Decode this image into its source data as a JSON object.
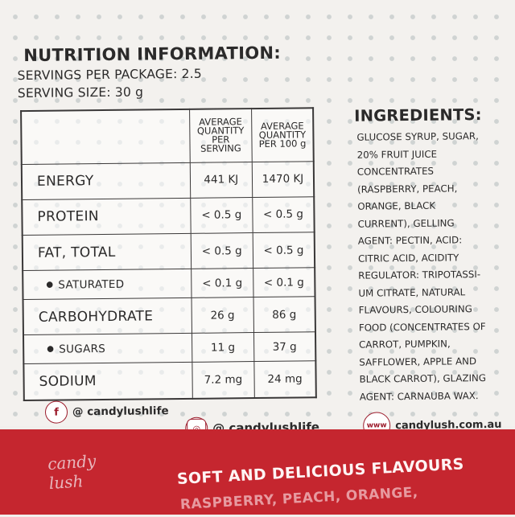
{
  "nutrition": {
    "title": "NUTRITION INFORMATION:",
    "servings_per_package": "SERVINGS PER PACKAGE: 2.5",
    "serving_size": "SERVING SIZE: 30 g",
    "header": {
      "per_serving": [
        "AVERAGE",
        "QUANTITY",
        "PER",
        "SERVING"
      ],
      "per_100g": [
        "AVERAGE",
        "QUANTITY",
        "PER 100 g"
      ]
    },
    "rows": [
      {
        "label": "ENERGY",
        "per_serving": "441 KJ",
        "per_100g": "1470 KJ"
      },
      {
        "label": "PROTEIN",
        "per_serving": "< 0.5 g",
        "per_100g": "< 0.5 g"
      },
      {
        "label": "FAT, TOTAL",
        "per_serving": "< 0.5 g",
        "per_100g": "< 0.5 g"
      },
      {
        "label": "SATURATED",
        "per_serving": "< 0.1 g",
        "per_100g": "< 0.1 g"
      },
      {
        "label": "CARBOHYDRATE",
        "per_serving": "26 g",
        "per_100g": "86 g"
      },
      {
        "label": "SUGARS",
        "per_serving": "11 g",
        "per_100g": "37 g"
      },
      {
        "label": "SODIUM",
        "per_serving": "7.2 mg",
        "per_100g": "24 mg"
      }
    ]
  },
  "ingredients": {
    "title": "INGREDIENTS:",
    "text": "GLUCOSE SYRUP, SUGAR, 20% FRUIT JUICE CONCENTRATES (RASPBERRY, PEACH, ORANGE, BLACK CURRENT), GELLING AGENT: PECTIN, ACID: CITRIC ACID, ACIDITY REGULATOR: TRIPOTASSI-UM CITRATE, NATURAL FLAVOURS, COLOURING FOOD (CONCENTRATES OF CARROT, PUMPKIN, SAFFLOWER, APPLE AND BLACK CARROT), GLAZING AGENT: CARNAUBA WAX."
  },
  "social": {
    "facebook": "@ candylushlife",
    "instagram": "@ candylushlife",
    "website": "candylush.com.au",
    "facebook_glyph": "f",
    "instagram_glyph": "◎",
    "website_glyph": "www"
  },
  "brand": {
    "logo_line1": "candy",
    "logo_line2": "lush",
    "tagline": "SOFT AND DELICIOUS FLAVOURS",
    "tagline2": "RASPBERRY, PEACH, ORANGE,"
  },
  "colors": {
    "band": "#c5262f",
    "icon": "#9c1c2c"
  }
}
